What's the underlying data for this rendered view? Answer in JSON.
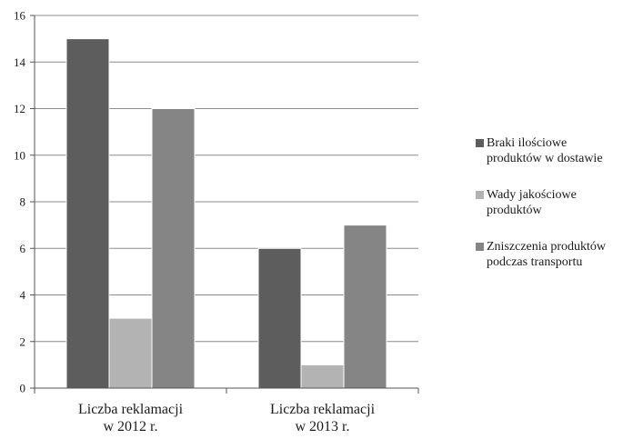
{
  "chart_data": {
    "type": "bar",
    "categories": [
      [
        "Liczba reklamacji",
        "w 2012 r."
      ],
      [
        "Liczba reklamacji",
        "w 2013 r."
      ]
    ],
    "series": [
      {
        "name": [
          "Braki ilościowe",
          "produktów w dostawie"
        ],
        "values": [
          15,
          6
        ],
        "color": "#5d5d5d"
      },
      {
        "name": [
          "Wady jakościowe",
          "produktów"
        ],
        "values": [
          3,
          1
        ],
        "color": "#b3b3b3"
      },
      {
        "name": [
          "Zniszczenia produktów",
          "podczas transportu"
        ],
        "values": [
          12,
          7
        ],
        "color": "#858585"
      }
    ],
    "ylim": [
      0,
      16
    ],
    "yticks": [
      0,
      2,
      4,
      6,
      8,
      10,
      12,
      14,
      16
    ],
    "grid": true,
    "legend": "right"
  }
}
